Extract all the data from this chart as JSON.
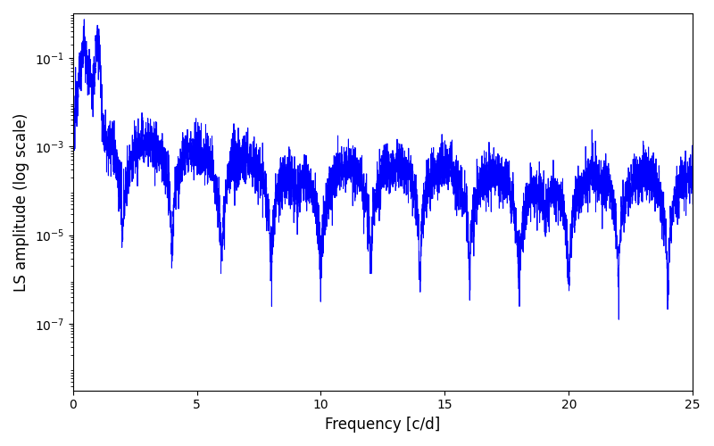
{
  "title": "",
  "xlabel": "Frequency [c/d]",
  "ylabel": "LS amplitude (log scale)",
  "xlim": [
    0,
    25
  ],
  "ylim_log": [
    -8.5,
    0
  ],
  "line_color": "#0000ff",
  "line_width": 0.7,
  "background_color": "#ffffff",
  "yticks": [
    1e-07,
    1e-05,
    0.001,
    0.1
  ],
  "xticks": [
    0,
    5,
    10,
    15,
    20,
    25
  ],
  "figsize": [
    8.0,
    5.0
  ],
  "dpi": 100,
  "seed": 12345,
  "n_points": 5000,
  "freq_max": 25.0
}
